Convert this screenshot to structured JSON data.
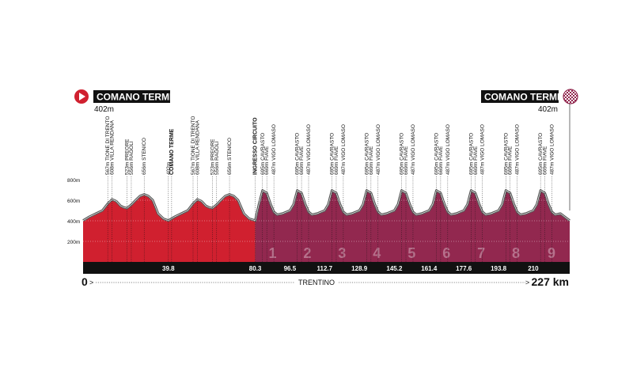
{
  "start": {
    "name": "COMANO TERME",
    "elevation": "402m"
  },
  "finish": {
    "name": "COMANO TERME",
    "elevation": "402m"
  },
  "bottom_axis": {
    "start_label": "0",
    "region": "TRENTINO",
    "end_label": "227 km"
  },
  "chart_data": {
    "type": "area",
    "xlim": [
      0,
      227
    ],
    "ylim": [
      0,
      800
    ],
    "yticks": [
      {
        "value": 200,
        "label": "200m"
      },
      {
        "value": 400,
        "label": "400m"
      },
      {
        "value": 600,
        "label": "600m"
      },
      {
        "value": 800,
        "label": "800m"
      }
    ],
    "km_markers": [
      {
        "km": 39.8,
        "label": "39.8"
      },
      {
        "km": 80.3,
        "label": "80.3"
      },
      {
        "km": 96.5,
        "label": "96.5"
      },
      {
        "km": 112.7,
        "label": "112.7"
      },
      {
        "km": 128.9,
        "label": "128.9"
      },
      {
        "km": 145.2,
        "label": "145.2"
      },
      {
        "km": 161.4,
        "label": "161.4"
      },
      {
        "km": 177.6,
        "label": "177.6"
      },
      {
        "km": 193.8,
        "label": "193.8"
      },
      {
        "km": 210,
        "label": "210"
      }
    ],
    "lap_numbers": [
      "1",
      "2",
      "3",
      "4",
      "5",
      "6",
      "7",
      "8",
      "9"
    ],
    "waypoints": [
      {
        "km": 11.5,
        "label": "567m TIONE DI TRENTO",
        "bold": false
      },
      {
        "km": 13.5,
        "label": "608m VILLA RENDANA",
        "bold": false
      },
      {
        "km": 20.5,
        "label": "523m PREORE",
        "bold": false
      },
      {
        "km": 22.5,
        "label": "556m RAGOLI",
        "bold": false
      },
      {
        "km": 28.5,
        "label": "656m STENICO",
        "bold": false
      },
      {
        "km": 39.8,
        "label": "402m",
        "bold": false
      },
      {
        "km": 41.3,
        "label": "COMANO TERME",
        "bold": true
      },
      {
        "km": 51.3,
        "label": "567m TIONE DI TRENTO",
        "bold": false
      },
      {
        "km": 53.3,
        "label": "608m VILLA RENDANA",
        "bold": false
      },
      {
        "km": 60.3,
        "label": "523m PREORE",
        "bold": false
      },
      {
        "km": 62.3,
        "label": "556m RAGOLI",
        "bold": false
      },
      {
        "km": 68.3,
        "label": "656m STENICO",
        "bold": false
      },
      {
        "km": 80.3,
        "label": "INGRESSO CIRCUITO",
        "bold": true
      },
      {
        "km": 83.7,
        "label": "695m CAVRASTO",
        "bold": false
      },
      {
        "km": 85.7,
        "label": "669m FIAVE",
        "bold": false
      },
      {
        "km": 89.0,
        "label": "487m VIGO LOMASO",
        "bold": false
      },
      {
        "km": 99.9,
        "label": "695m CAVRASTO",
        "bold": false
      },
      {
        "km": 101.9,
        "label": "669m FIAVE",
        "bold": false
      },
      {
        "km": 105.2,
        "label": "487m VIGO LOMASO",
        "bold": false
      },
      {
        "km": 116.1,
        "label": "695m CAVRASTO",
        "bold": false
      },
      {
        "km": 118.1,
        "label": "669m FIAVE",
        "bold": false
      },
      {
        "km": 121.4,
        "label": "487m VIGO LOMASO",
        "bold": false
      },
      {
        "km": 132.3,
        "label": "695m CAVRASTO",
        "bold": false
      },
      {
        "km": 134.3,
        "label": "669m FIAVE",
        "bold": false
      },
      {
        "km": 137.6,
        "label": "487m VIGO LOMASO",
        "bold": false
      },
      {
        "km": 148.6,
        "label": "695m CAVRASTO",
        "bold": false
      },
      {
        "km": 150.6,
        "label": "669m FIAVE",
        "bold": false
      },
      {
        "km": 153.9,
        "label": "487m VIGO LOMASO",
        "bold": false
      },
      {
        "km": 164.8,
        "label": "695m CAVRASTO",
        "bold": false
      },
      {
        "km": 166.8,
        "label": "669m FIAVE",
        "bold": false
      },
      {
        "km": 170.1,
        "label": "487m VIGO LOMASO",
        "bold": false
      },
      {
        "km": 181.0,
        "label": "695m CAVRASTO",
        "bold": false
      },
      {
        "km": 183.0,
        "label": "669m FIAVE",
        "bold": false
      },
      {
        "km": 186.3,
        "label": "487m VIGO LOMASO",
        "bold": false
      },
      {
        "km": 197.2,
        "label": "695m CAVRASTO",
        "bold": false
      },
      {
        "km": 199.2,
        "label": "669m FIAVE",
        "bold": false
      },
      {
        "km": 202.5,
        "label": "487m VIGO LOMASO",
        "bold": false
      },
      {
        "km": 213.4,
        "label": "695m CAVRASTO",
        "bold": false
      },
      {
        "km": 215.4,
        "label": "669m FIAVE",
        "bold": false
      },
      {
        "km": 218.7,
        "label": "487m VIGO LOMASO",
        "bold": false
      }
    ],
    "segments": [
      {
        "name": "red",
        "color": "#d0202f",
        "km_from": 0,
        "km_to": 80.3
      },
      {
        "name": "circuit",
        "color": "#92284f",
        "km_from": 80.3,
        "km_to": 227
      }
    ],
    "climb_shade_color": "#5a5a5a",
    "profile": [
      [
        0,
        402
      ],
      [
        3,
        440
      ],
      [
        6,
        470
      ],
      [
        9,
        500
      ],
      [
        11.5,
        567
      ],
      [
        13.5,
        608
      ],
      [
        15.5,
        590
      ],
      [
        17.5,
        545
      ],
      [
        19,
        530
      ],
      [
        20.5,
        523
      ],
      [
        22.5,
        556
      ],
      [
        24.5,
        600
      ],
      [
        26.5,
        640
      ],
      [
        28.5,
        656
      ],
      [
        30.5,
        640
      ],
      [
        32.5,
        600
      ],
      [
        35,
        470
      ],
      [
        37.5,
        420
      ],
      [
        39.8,
        402
      ],
      [
        42.8,
        440
      ],
      [
        45.8,
        470
      ],
      [
        48.8,
        500
      ],
      [
        51.3,
        567
      ],
      [
        53.3,
        608
      ],
      [
        55.3,
        590
      ],
      [
        57.3,
        545
      ],
      [
        58.8,
        530
      ],
      [
        60.3,
        523
      ],
      [
        62.3,
        556
      ],
      [
        64.3,
        600
      ],
      [
        66.3,
        640
      ],
      [
        68.3,
        656
      ],
      [
        70.3,
        640
      ],
      [
        72.3,
        600
      ],
      [
        75,
        470
      ],
      [
        77.5,
        420
      ],
      [
        80.3,
        402
      ],
      [
        82,
        560
      ],
      [
        83.7,
        695
      ],
      [
        85.7,
        669
      ],
      [
        87.5,
        560
      ],
      [
        89.0,
        487
      ],
      [
        90.5,
        460
      ],
      [
        93,
        470
      ],
      [
        96.5,
        500
      ],
      [
        98.2,
        560
      ],
      [
        99.9,
        695
      ],
      [
        101.9,
        669
      ],
      [
        103.7,
        560
      ],
      [
        105.2,
        487
      ],
      [
        106.7,
        460
      ],
      [
        109.2,
        470
      ],
      [
        112.7,
        500
      ],
      [
        114.4,
        560
      ],
      [
        116.1,
        695
      ],
      [
        118.1,
        669
      ],
      [
        119.9,
        560
      ],
      [
        121.4,
        487
      ],
      [
        122.9,
        460
      ],
      [
        125.4,
        470
      ],
      [
        128.9,
        500
      ],
      [
        130.6,
        560
      ],
      [
        132.3,
        695
      ],
      [
        134.3,
        669
      ],
      [
        136.1,
        560
      ],
      [
        137.6,
        487
      ],
      [
        139.1,
        460
      ],
      [
        141.6,
        470
      ],
      [
        145.2,
        500
      ],
      [
        146.9,
        560
      ],
      [
        148.6,
        695
      ],
      [
        150.6,
        669
      ],
      [
        152.4,
        560
      ],
      [
        153.9,
        487
      ],
      [
        155.4,
        460
      ],
      [
        157.9,
        470
      ],
      [
        161.4,
        500
      ],
      [
        163.1,
        560
      ],
      [
        164.8,
        695
      ],
      [
        166.8,
        669
      ],
      [
        168.6,
        560
      ],
      [
        170.1,
        487
      ],
      [
        171.6,
        460
      ],
      [
        174.1,
        470
      ],
      [
        177.6,
        500
      ],
      [
        179.3,
        560
      ],
      [
        181.0,
        695
      ],
      [
        183.0,
        669
      ],
      [
        184.8,
        560
      ],
      [
        186.3,
        487
      ],
      [
        187.8,
        460
      ],
      [
        190.3,
        470
      ],
      [
        193.8,
        500
      ],
      [
        195.5,
        560
      ],
      [
        197.2,
        695
      ],
      [
        199.2,
        669
      ],
      [
        201.0,
        560
      ],
      [
        202.5,
        487
      ],
      [
        204.0,
        460
      ],
      [
        206.5,
        470
      ],
      [
        210,
        500
      ],
      [
        211.7,
        560
      ],
      [
        213.4,
        695
      ],
      [
        215.4,
        669
      ],
      [
        217.2,
        560
      ],
      [
        218.7,
        487
      ],
      [
        220.2,
        460
      ],
      [
        222.7,
        470
      ],
      [
        227,
        402
      ]
    ]
  }
}
